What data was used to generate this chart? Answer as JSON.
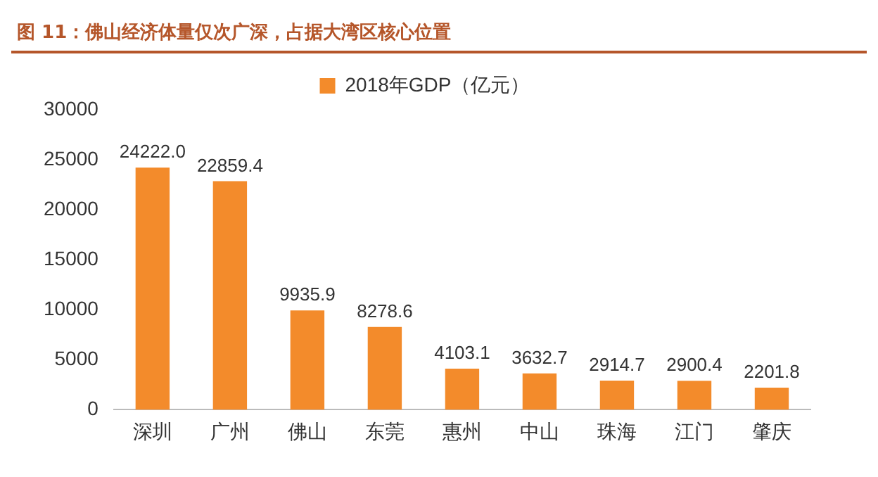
{
  "chart_data": {
    "type": "bar",
    "title": "图 11：佛山经济体量仅次广深，占据大湾区核心位置",
    "categories": [
      "深圳",
      "广州",
      "佛山",
      "东莞",
      "惠州",
      "中山",
      "珠海",
      "江门",
      "肇庆"
    ],
    "series": [
      {
        "name": "2018年GDP（亿元）",
        "color": "#f38b2b",
        "values": [
          24222,
          22859.4,
          9935.9,
          8278.6,
          4103.1,
          3632.7,
          2914.7,
          2900.4,
          2201.8
        ],
        "value_labels": [
          "24222.0",
          "22859.4",
          "9935.9",
          "8278.6",
          "4103.1",
          "3632.7",
          "2914.7",
          "2900.4",
          "2201.8"
        ]
      }
    ],
    "ylim": [
      0,
      30000
    ],
    "yticks": [
      0,
      5000,
      10000,
      15000,
      20000,
      25000,
      30000
    ],
    "grid": false,
    "legend": "top"
  }
}
